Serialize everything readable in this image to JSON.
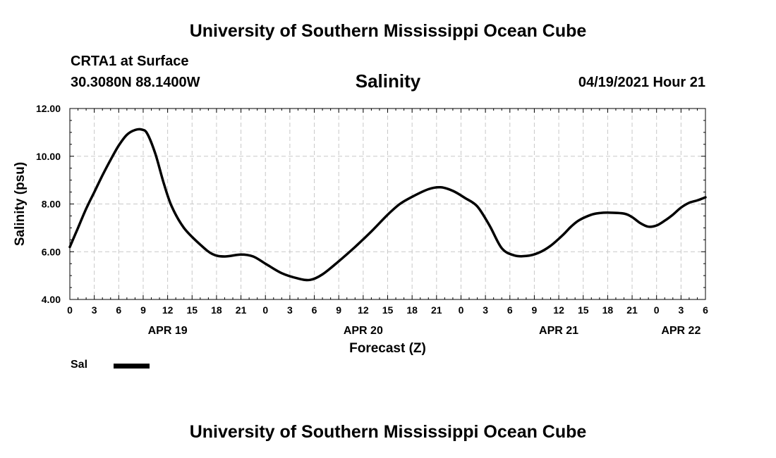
{
  "header": {
    "title": "University of Southern Mississippi Ocean Cube",
    "station": "CRTA1 at Surface",
    "coordinates": "30.3080N  88.1400W",
    "parameter": "Salinity",
    "datetime": "04/19/2021 Hour 21"
  },
  "footer": {
    "title": "University of Southern Mississippi Ocean Cube"
  },
  "chart_data": {
    "type": "line",
    "title": "Salinity",
    "xlabel": "Forecast (Z)",
    "ylabel": "Salinity (psu)",
    "ylim": [
      4.0,
      12.0
    ],
    "y_ticks": [
      "4.00",
      "6.00",
      "8.00",
      "10.00",
      "12.00"
    ],
    "xlim": [
      0,
      78
    ],
    "x_tick_labels": [
      "0",
      "3",
      "6",
      "9",
      "12",
      "15",
      "18",
      "21",
      "0",
      "3",
      "6",
      "9",
      "12",
      "15",
      "18",
      "21",
      "0",
      "3",
      "6",
      "9",
      "12",
      "15",
      "18",
      "21",
      "0",
      "3",
      "6"
    ],
    "date_labels": [
      {
        "label": "APR 19",
        "hour": 12
      },
      {
        "label": "APR 20",
        "hour": 36
      },
      {
        "label": "APR 21",
        "hour": 60
      },
      {
        "label": "APR 22",
        "hour": 75
      }
    ],
    "grid": true,
    "legend": "bottom-left",
    "series": [
      {
        "name": "Sal",
        "color": "#000000",
        "x": [
          0,
          1,
          2,
          3,
          4,
          5,
          6,
          7,
          8,
          8.8,
          9.5,
          10.5,
          11.5,
          12.5,
          14,
          16,
          17.5,
          19,
          21,
          22.5,
          24,
          26,
          28,
          29.5,
          31,
          33,
          35,
          37,
          39,
          40.5,
          42,
          44,
          45.5,
          47,
          48.5,
          50,
          51.5,
          53,
          54.5,
          56,
          57.5,
          59,
          60.5,
          61.5,
          62.5,
          64,
          65,
          66,
          68,
          69,
          70,
          71,
          72,
          73,
          74,
          75,
          76,
          77,
          78
        ],
        "values": [
          6.2,
          7.0,
          7.8,
          8.5,
          9.2,
          9.85,
          10.45,
          10.9,
          11.1,
          11.12,
          10.95,
          10.1,
          8.9,
          7.9,
          7.0,
          6.3,
          5.9,
          5.8,
          5.88,
          5.8,
          5.5,
          5.1,
          4.88,
          4.82,
          5.05,
          5.6,
          6.2,
          6.85,
          7.55,
          8.0,
          8.3,
          8.62,
          8.7,
          8.55,
          8.25,
          7.9,
          7.1,
          6.15,
          5.85,
          5.82,
          5.95,
          6.25,
          6.7,
          7.05,
          7.32,
          7.55,
          7.62,
          7.64,
          7.6,
          7.45,
          7.2,
          7.05,
          7.1,
          7.3,
          7.55,
          7.85,
          8.05,
          8.15,
          8.28
        ]
      }
    ]
  }
}
